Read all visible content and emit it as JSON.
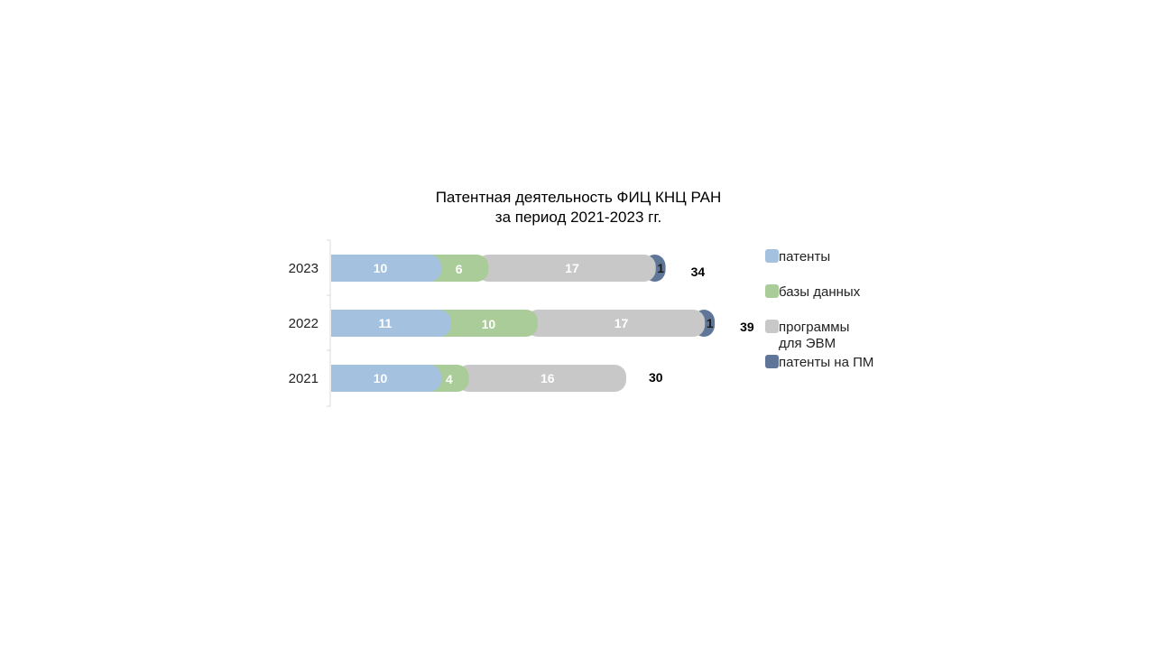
{
  "chart_data": {
    "type": "bar",
    "orientation": "horizontal",
    "stacked": true,
    "title": [
      "Патентная деятельность ФИЦ КНЦ РАН",
      "за период 2021-2023 гг."
    ],
    "categories": [
      "2023",
      "2022",
      "2021"
    ],
    "series": [
      {
        "name": "патенты",
        "color": "#a4c2df",
        "label_color": "#ffffff",
        "values": [
          10,
          11,
          10
        ]
      },
      {
        "name": "базы данных",
        "color": "#a9cc98",
        "label_color": "#ffffff",
        "values": [
          6,
          10,
          4
        ]
      },
      {
        "name": [
          "программы",
          "для ЭВМ"
        ],
        "color": "#c8c8c8",
        "label_color": "#ffffff",
        "values": [
          17,
          17,
          16
        ]
      },
      {
        "name": "патенты на ПМ",
        "color": "#5f7699",
        "label_color": "#1a1a1a",
        "values": [
          1,
          1,
          null
        ]
      }
    ],
    "totals": [
      34,
      39,
      30
    ],
    "legend_position": "right",
    "grid": false
  }
}
